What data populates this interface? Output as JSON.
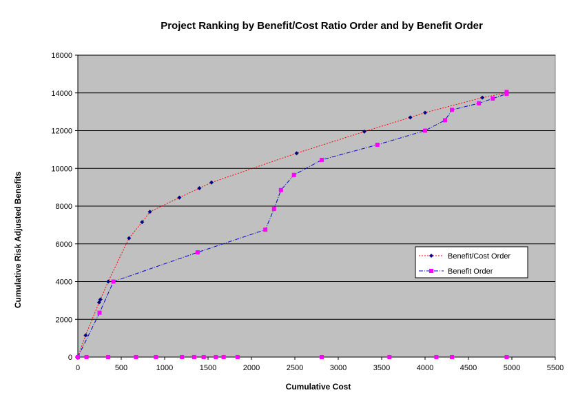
{
  "chart_data": {
    "type": "line",
    "title": "Project Ranking by Benefit/Cost Ratio Order and by Benefit Order",
    "xlabel": "Cumulative Cost",
    "ylabel": "Cumulative Risk Adjusted Benefits",
    "xlim": [
      0,
      5500
    ],
    "ylim": [
      0,
      16000
    ],
    "xticks": [
      0,
      500,
      1000,
      1500,
      2000,
      2500,
      3000,
      3500,
      4000,
      4500,
      5000,
      5500
    ],
    "yticks": [
      0,
      2000,
      4000,
      6000,
      8000,
      10000,
      12000,
      14000,
      16000
    ],
    "grid": "horizontal",
    "legend_position": "right",
    "plot_background": "#C0C0C0",
    "series": [
      {
        "name": "Benefit/Cost Order",
        "line_color": "#FF0000",
        "marker_color": "#000080",
        "marker": "diamond",
        "line_style": "dotted",
        "points": [
          [
            0,
            0
          ],
          [
            90,
            1150
          ],
          [
            245,
            2900
          ],
          [
            260,
            3050
          ],
          [
            350,
            4000
          ],
          [
            590,
            6300
          ],
          [
            740,
            7150
          ],
          [
            830,
            7700
          ],
          [
            1170,
            8450
          ],
          [
            1400,
            8950
          ],
          [
            1540,
            9250
          ],
          [
            2520,
            10800
          ],
          [
            3300,
            11950
          ],
          [
            3830,
            12700
          ],
          [
            4000,
            12950
          ],
          [
            4660,
            13750
          ],
          [
            4940,
            14000
          ]
        ]
      },
      {
        "name": "Benefit Order",
        "line_color": "#0000CD",
        "marker_color": "#FF00FF",
        "marker": "square",
        "line_style": "dashdot",
        "points": [
          [
            0,
            0
          ],
          [
            250,
            2350
          ],
          [
            410,
            4000
          ],
          [
            1380,
            5550
          ],
          [
            2160,
            6750
          ],
          [
            2260,
            7850
          ],
          [
            2340,
            8850
          ],
          [
            2490,
            9650
          ],
          [
            2810,
            10450
          ],
          [
            3450,
            11250
          ],
          [
            4000,
            12000
          ],
          [
            4230,
            12550
          ],
          [
            4310,
            13100
          ],
          [
            4620,
            13450
          ],
          [
            4780,
            13700
          ],
          [
            4940,
            13950
          ],
          [
            4940,
            14050
          ]
        ]
      }
    ],
    "baseline_markers": {
      "marker_color": "#FF00FF",
      "x": [
        0,
        100,
        350,
        670,
        900,
        1200,
        1340,
        1450,
        1590,
        1680,
        1840,
        2810,
        3590,
        4130,
        4310,
        4940
      ]
    }
  }
}
